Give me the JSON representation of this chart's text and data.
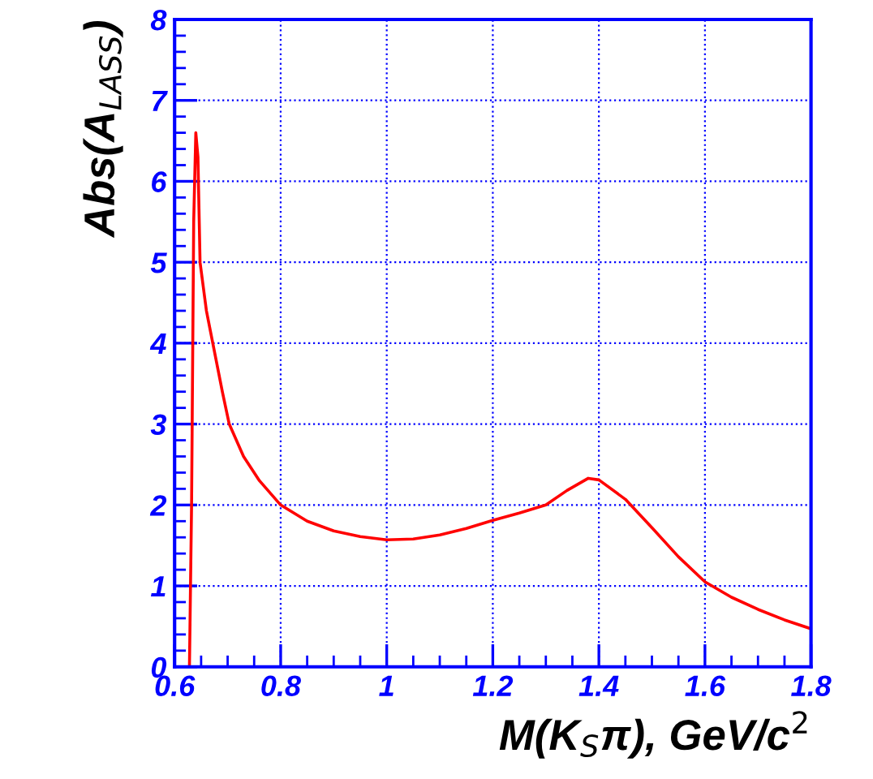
{
  "chart_data": {
    "type": "line",
    "xlabel": "M(K$_{S}$π), GeV/c$^{2}$",
    "ylabel": "Abs(A$_{LASS}$)",
    "xlim": [
      0.6,
      1.8
    ],
    "xticks": [
      0.6,
      0.8,
      1,
      1.2,
      1.4,
      1.6,
      1.8
    ],
    "ylim": [
      0,
      8
    ],
    "yticks": [
      0,
      1,
      2,
      3,
      4,
      5,
      6,
      7,
      8
    ],
    "grid": true,
    "marker": "none",
    "line_style": "solid",
    "series": [
      {
        "color": "#ff0000",
        "x": [
          0.6,
          0.628,
          0.632,
          0.636,
          0.64,
          0.644,
          0.648,
          0.66,
          0.672,
          0.69,
          0.703,
          0.73,
          0.76,
          0.8,
          0.85,
          0.9,
          0.95,
          1.0,
          1.05,
          1.1,
          1.15,
          1.2,
          1.25,
          1.3,
          1.34,
          1.38,
          1.4,
          1.45,
          1.5,
          1.55,
          1.6,
          1.65,
          1.7,
          1.75,
          1.8
        ],
        "values": [
          0,
          0,
          2.0,
          5.5,
          6.6,
          6.3,
          5.0,
          4.4,
          4.0,
          3.4,
          3.0,
          2.6,
          2.3,
          2.0,
          1.8,
          1.68,
          1.61,
          1.57,
          1.58,
          1.63,
          1.71,
          1.81,
          1.9,
          2.0,
          2.18,
          2.33,
          2.31,
          2.07,
          1.72,
          1.36,
          1.05,
          0.86,
          0.71,
          0.58,
          0.47
        ]
      }
    ]
  }
}
